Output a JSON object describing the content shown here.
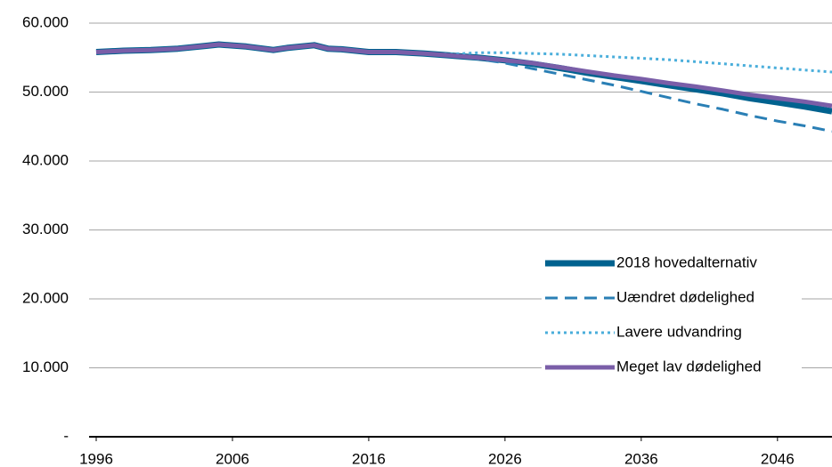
{
  "chart_data": {
    "type": "line",
    "x": [
      1996,
      1998,
      2000,
      2002,
      2004,
      2005,
      2007,
      2009,
      2010,
      2012,
      2013,
      2014,
      2016,
      2018,
      2020,
      2022,
      2024,
      2026,
      2028,
      2030,
      2032,
      2034,
      2036,
      2038,
      2040,
      2042,
      2044,
      2046,
      2048,
      2050
    ],
    "xlim": [
      1996,
      2050
    ],
    "xticks": [
      1996,
      2006,
      2016,
      2026,
      2036,
      2046
    ],
    "ylim": [
      0,
      60000
    ],
    "yticks": [
      {
        "value": 0,
        "label": "-"
      },
      {
        "value": 10000,
        "label": "10.000"
      },
      {
        "value": 20000,
        "label": "20.000"
      },
      {
        "value": 30000,
        "label": "30.000"
      },
      {
        "value": 40000,
        "label": "40.000"
      },
      {
        "value": 50000,
        "label": "50.000"
      },
      {
        "value": 60000,
        "label": "60.000"
      }
    ],
    "grid": true,
    "legend": "lower right",
    "series": [
      {
        "name": "2018 hovedalternativ",
        "color": "#00628f",
        "dash": "solid",
        "width": 7,
        "values": [
          55800,
          56000,
          56100,
          56300,
          56700,
          56900,
          56600,
          56100,
          56400,
          56800,
          56300,
          56200,
          55800,
          55800,
          55600,
          55300,
          55000,
          54600,
          54100,
          53500,
          52800,
          52200,
          51600,
          51000,
          50400,
          49800,
          49100,
          48500,
          47900,
          47200
        ]
      },
      {
        "name": "Uændret dødelighed",
        "color": "#2a7fb5",
        "dash": "dashed",
        "width": 3,
        "values": [
          55800,
          56000,
          56100,
          56300,
          56700,
          56900,
          56600,
          56100,
          56400,
          56800,
          56300,
          56200,
          55800,
          55800,
          55600,
          55300,
          54800,
          54200,
          53400,
          52600,
          51800,
          51000,
          50100,
          49200,
          48300,
          47500,
          46600,
          45800,
          45100,
          44300
        ]
      },
      {
        "name": "Lavere udvandring",
        "color": "#4aaedb",
        "dash": "dotted",
        "width": 3,
        "values": [
          55800,
          56000,
          56100,
          56300,
          56700,
          56900,
          56600,
          56100,
          56400,
          56800,
          56300,
          56200,
          55800,
          55800,
          55600,
          55500,
          55700,
          55700,
          55600,
          55500,
          55300,
          55100,
          54900,
          54700,
          54400,
          54100,
          53800,
          53500,
          53200,
          52900
        ]
      },
      {
        "name": "Meget lav dødelighed",
        "color": "#7a5ea8",
        "dash": "solid",
        "width": 5,
        "values": [
          55800,
          56000,
          56100,
          56300,
          56700,
          56900,
          56600,
          56100,
          56400,
          56800,
          56300,
          56200,
          55800,
          55800,
          55600,
          55300,
          55000,
          54600,
          54200,
          53600,
          53000,
          52400,
          51900,
          51300,
          50800,
          50200,
          49600,
          49100,
          48600,
          48000
        ]
      }
    ]
  }
}
